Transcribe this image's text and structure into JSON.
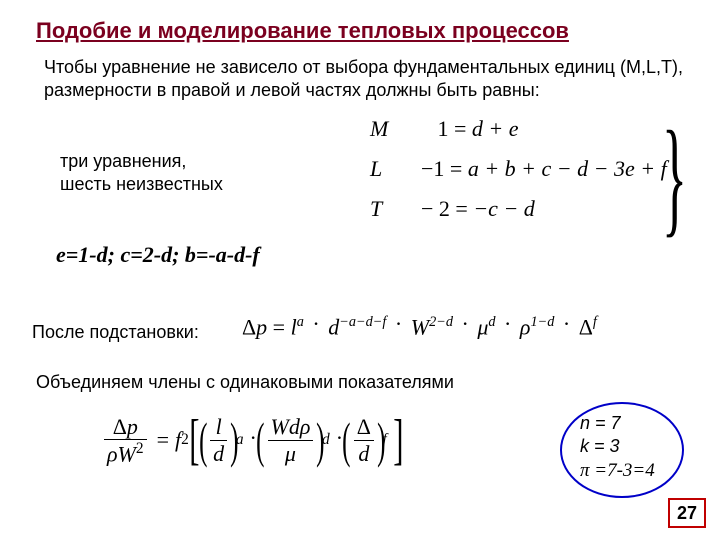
{
  "title": "Подобие и моделирование тепловых процессов",
  "intro": "Чтобы уравнение не зависело от выбора фундаментальных единиц (M,L,T), размерности в правой и левой частях должны быть равны:",
  "note_line1": "три уравнения,",
  "note_line2": "шесть неизвестных",
  "eq": {
    "r1_var": "M",
    "r1_rhs_a": "1 = ",
    "r1_rhs_b": "d + e",
    "r2_var": "L",
    "r2_rhs_a": "−1 = ",
    "r2_rhs_b": "a + b + c − d − 3e + f",
    "r3_var": "T",
    "r3_rhs_a": "− 2 = ",
    "r3_rhs_b": "−c − d"
  },
  "solved": "e=1-d;   c=2-d;   b=-a-d-f",
  "after_label": "После подстановки:",
  "after_eq": {
    "dp": "Δp",
    "eq": " = ",
    "l": "l",
    "exp_a": "a",
    "d": "d",
    "exp_d": "−a−d−f",
    "W": "W",
    "exp_W": "2−d",
    "mu": "μ",
    "exp_mu": "d",
    "rho": "ρ",
    "exp_rho": "1−d",
    "Delta": "Δ",
    "exp_Delta": "f"
  },
  "combine_label": "Объединяем члены с одинаковыми показателями",
  "combine": {
    "dp": "Δp",
    "denom": "ρW",
    "denom_exp": "2",
    "f2": "f",
    "f2_sub": "2",
    "g1_num": "l",
    "g1_den": "d",
    "g1_exp": "a",
    "g2_num": "Wdρ",
    "g2_den": "μ",
    "g2_exp": "d",
    "g3_num": "Δ",
    "g3_den": "d",
    "g3_exp": "f"
  },
  "bubble": {
    "l1": "n = 7",
    "l2": "k = 3",
    "l3": "π =7-3=4"
  },
  "page": "27",
  "colors": {
    "title": "#7b001f",
    "circle": "#0000c8",
    "pagebox": "#c00000"
  }
}
